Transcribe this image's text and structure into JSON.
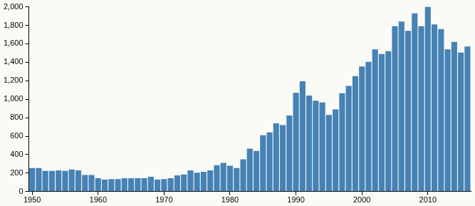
{
  "chart_data": {
    "type": "bar",
    "categories": [
      "1950",
      null,
      null,
      null,
      null,
      null,
      null,
      null,
      null,
      null,
      "1960",
      null,
      null,
      null,
      null,
      null,
      null,
      null,
      null,
      null,
      "1970",
      null,
      null,
      null,
      null,
      null,
      null,
      null,
      null,
      null,
      "1980",
      null,
      null,
      null,
      null,
      null,
      null,
      null,
      null,
      null,
      "1990",
      null,
      null,
      null,
      null,
      null,
      null,
      null,
      null,
      null,
      "2000",
      null,
      null,
      null,
      null,
      null,
      null,
      null,
      null,
      null,
      "2010",
      null,
      null,
      null,
      null,
      null,
      null
    ],
    "values": [
      255,
      255,
      225,
      225,
      230,
      225,
      240,
      230,
      180,
      180,
      145,
      130,
      135,
      135,
      145,
      145,
      145,
      145,
      160,
      130,
      135,
      145,
      175,
      185,
      230,
      205,
      215,
      230,
      285,
      310,
      280,
      255,
      350,
      465,
      440,
      610,
      640,
      740,
      720,
      825,
      1070,
      1195,
      1040,
      985,
      965,
      830,
      890,
      1065,
      1145,
      1250,
      1355,
      1405,
      1540,
      1490,
      1520,
      1790,
      1840,
      1740,
      1930,
      1790,
      2000,
      1810,
      1760,
      1540,
      1620,
      1505,
      1570
    ],
    "color": "#4682b4",
    "ylim": [
      0,
      2000
    ],
    "yticks": [
      0,
      200,
      400,
      600,
      800,
      {
        "value": 1000,
        "label": "1,000"
      },
      {
        "value": 1200,
        "label": "1,200"
      },
      {
        "value": 1400,
        "label": "1,400"
      },
      {
        "value": 1600,
        "label": "1,600"
      },
      {
        "value": 1800,
        "label": "1,800"
      },
      {
        "value": 2000,
        "label": "2,000"
      }
    ],
    "grid": false
  }
}
